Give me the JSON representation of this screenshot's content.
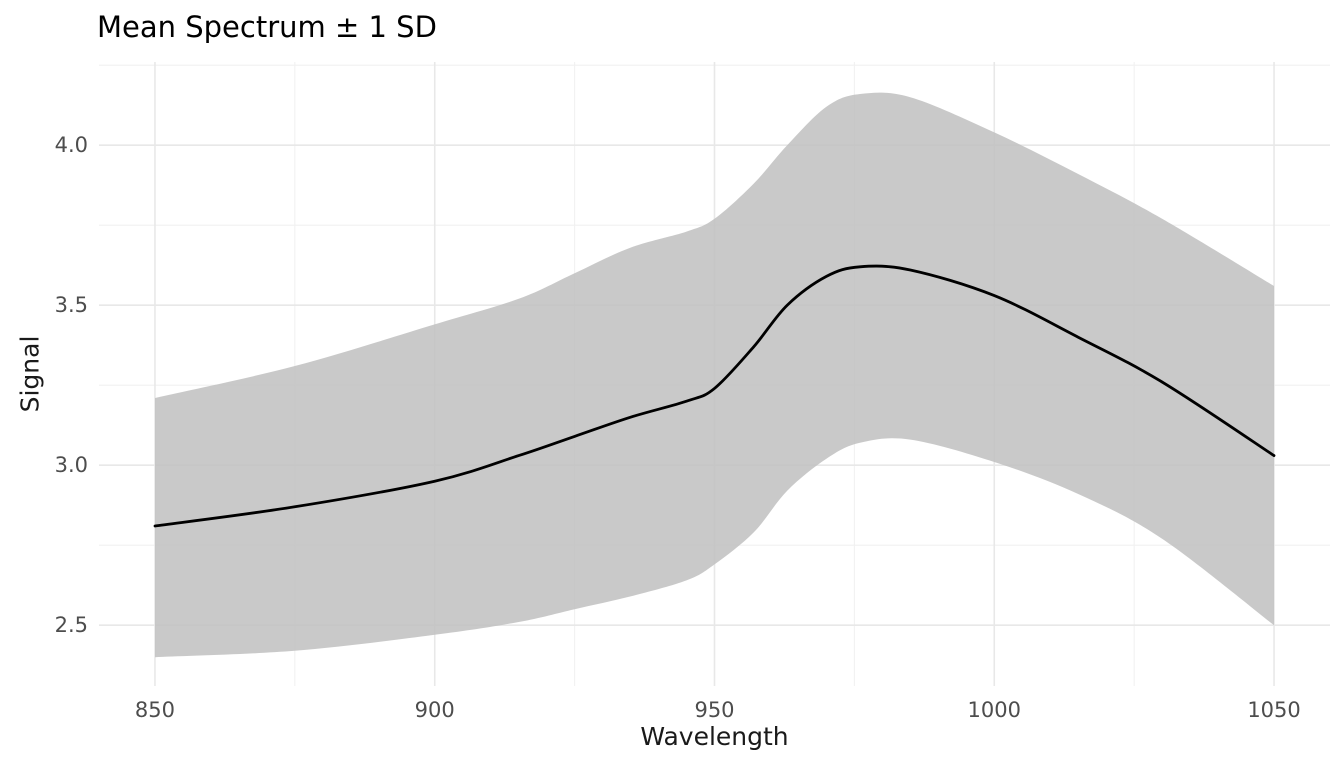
{
  "figure": {
    "title": "Mean Spectrum ± 1 SD",
    "x_axis_title": "Wavelength",
    "y_axis_title": "Signal"
  },
  "chart_data": {
    "type": "line",
    "title": "Mean Spectrum ± 1 SD",
    "subtitle": "",
    "xlabel": "Wavelength",
    "ylabel": "Signal",
    "legend": "none",
    "grid": "major+minor, no axis lines, no tick marks",
    "xlim": [
      840,
      1060
    ],
    "ylim": [
      2.31,
      4.26
    ],
    "x": [
      850,
      875,
      900,
      915,
      925,
      935,
      945,
      950,
      957,
      963,
      970,
      976,
      985,
      1000,
      1015,
      1030,
      1050
    ],
    "series": [
      {
        "name": "mean",
        "role": "line",
        "values": [
          2.81,
          2.87,
          2.95,
          3.03,
          3.09,
          3.15,
          3.2,
          3.24,
          3.37,
          3.5,
          3.59,
          3.62,
          3.61,
          3.53,
          3.4,
          3.26,
          3.03
        ]
      },
      {
        "name": "mean + 1 SD",
        "role": "ribbon_upper",
        "values": [
          3.21,
          3.31,
          3.44,
          3.52,
          3.6,
          3.68,
          3.73,
          3.77,
          3.88,
          4.0,
          4.12,
          4.16,
          4.15,
          4.04,
          3.91,
          3.77,
          3.56
        ]
      },
      {
        "name": "mean - 1 SD",
        "role": "ribbon_lower",
        "values": [
          2.4,
          2.42,
          2.47,
          2.51,
          2.55,
          2.59,
          2.64,
          2.69,
          2.79,
          2.92,
          3.02,
          3.07,
          3.08,
          3.01,
          2.91,
          2.77,
          2.5
        ]
      }
    ],
    "x_ticks": {
      "major": [
        850,
        900,
        950,
        1000,
        1050
      ],
      "labels": [
        "850",
        "900",
        "950",
        "1000",
        "1050"
      ],
      "minor": [
        875,
        925,
        975,
        1025
      ]
    },
    "y_ticks": {
      "major": [
        2.5,
        3.0,
        3.5,
        4.0
      ],
      "labels": [
        "2.5",
        "3.0",
        "3.5",
        "4.0"
      ],
      "minor": [
        2.75,
        3.25,
        3.75,
        4.25
      ]
    },
    "colors": {
      "mean_line": "#000000",
      "ribbon": "#bfbfbf",
      "grid_major": "#e8e8e8",
      "grid_minor": "#f1f1f1",
      "tick_label": "#4d4d4d",
      "axis_title": "#1a1a1a",
      "title": "#000000",
      "background": "#ffffff"
    }
  }
}
